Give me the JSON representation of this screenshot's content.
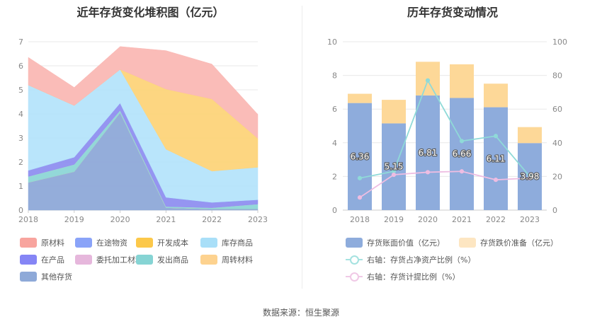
{
  "chart_data": [
    {
      "type": "area",
      "title": "近年存货变化堆积图（亿元）",
      "categories": [
        "2018",
        "2019",
        "2020",
        "2021",
        "2022",
        "2023"
      ],
      "ylim": [
        0,
        7
      ],
      "yticks": [
        0,
        1,
        2,
        3,
        4,
        5,
        6,
        7
      ],
      "stacking": "stacked",
      "series": [
        {
          "name": "其他存货",
          "color": "#8ea9d8",
          "values": [
            1.15,
            1.6,
            4.05,
            0.1,
            0.05,
            0.05
          ]
        },
        {
          "name": "周转材料",
          "color": "#fdd79a",
          "values": [
            0,
            0,
            0,
            0,
            0,
            0
          ]
        },
        {
          "name": "发出商品",
          "color": "#8dd6d6",
          "values": [
            0.25,
            0.3,
            0.1,
            0.05,
            0.05,
            0.2
          ]
        },
        {
          "name": "委托加工材料",
          "color": "#e6b7dc",
          "values": [
            0,
            0,
            0,
            0,
            0,
            0
          ]
        },
        {
          "name": "在产品",
          "color": "#8f8ff0",
          "values": [
            0.25,
            0.3,
            0.3,
            0.38,
            0.22,
            0.18
          ]
        },
        {
          "name": "在途物资",
          "color": "#8aa3f8",
          "values": [
            0,
            0,
            0,
            0,
            0,
            0
          ]
        },
        {
          "name": "库存商品",
          "color": "#b5e4fb",
          "values": [
            3.55,
            2.15,
            1.4,
            2.0,
            1.3,
            1.35
          ]
        },
        {
          "name": "开发成本",
          "color": "#fdd47a",
          "values": [
            0,
            0,
            0,
            2.5,
            3.0,
            1.2
          ]
        },
        {
          "name": "原材料",
          "color": "#fab8b4",
          "values": [
            1.15,
            0.75,
            0.95,
            1.6,
            1.45,
            1.0
          ]
        }
      ],
      "legend": {
        "placement": "bottom",
        "items": [
          {
            "name": "原材料",
            "color": "#f8a49e"
          },
          {
            "name": "在途物资",
            "color": "#8aa3f8"
          },
          {
            "name": "开发成本",
            "color": "#fcc84a"
          },
          {
            "name": "库存商品",
            "color": "#a9dff8"
          },
          {
            "name": "在产品",
            "color": "#8585f5"
          },
          {
            "name": "委托加工材料",
            "color": "#e6b7dc"
          },
          {
            "name": "发出商品",
            "color": "#86d4d4"
          },
          {
            "name": "周转材料",
            "color": "#fdd28f"
          },
          {
            "name": "其他存货",
            "color": "#8ea9d8"
          }
        ]
      }
    },
    {
      "type": "bar",
      "title": "历年存货变动情况",
      "categories": [
        "2018",
        "2019",
        "2020",
        "2021",
        "2022",
        "2023"
      ],
      "ylim": [
        0,
        10
      ],
      "yticks": [
        0,
        2,
        4,
        6,
        8,
        10
      ],
      "y2lim": [
        0,
        100
      ],
      "y2ticks": [
        0,
        20,
        40,
        60,
        80,
        100
      ],
      "stacking": "stacked",
      "series": [
        {
          "name": "存货账面价值（亿元）",
          "color": "#8eacdc",
          "values": [
            6.36,
            5.15,
            6.81,
            6.66,
            6.11,
            3.98
          ],
          "labels": [
            "6.36",
            "5.15",
            "6.81",
            "6.66",
            "6.11",
            "3.98"
          ]
        },
        {
          "name": "存货跌价准备（亿元）",
          "color": "#fdd898",
          "values": [
            0.55,
            1.4,
            2.0,
            2.0,
            1.4,
            0.95
          ]
        },
        {
          "name": "右轴：存货占净资产比例（%）",
          "type": "line",
          "axis": "right",
          "color": "#8fdad8",
          "values": [
            19,
            23,
            77,
            41,
            44,
            20
          ]
        },
        {
          "name": "右轴：存货计提比例（%）",
          "type": "line",
          "axis": "right",
          "color": "#eebde2",
          "values": [
            7.5,
            21,
            22.5,
            23,
            18,
            19
          ]
        }
      ],
      "legend": {
        "placement": "bottom",
        "items": [
          {
            "name": "存货账面价值（亿元）",
            "kind": "bar",
            "color": "#8eacdc"
          },
          {
            "name": "存货跌价准备（亿元）",
            "kind": "bar",
            "color": "#fde6c2"
          },
          {
            "name": "右轴：存货占净资产比例（%）",
            "kind": "line",
            "color": "#a5e2e0"
          },
          {
            "name": "右轴：存货计提比例（%）",
            "kind": "line",
            "color": "#f0c9e6"
          }
        ]
      }
    }
  ],
  "footer": {
    "source": "数据来源：恒生聚源"
  }
}
